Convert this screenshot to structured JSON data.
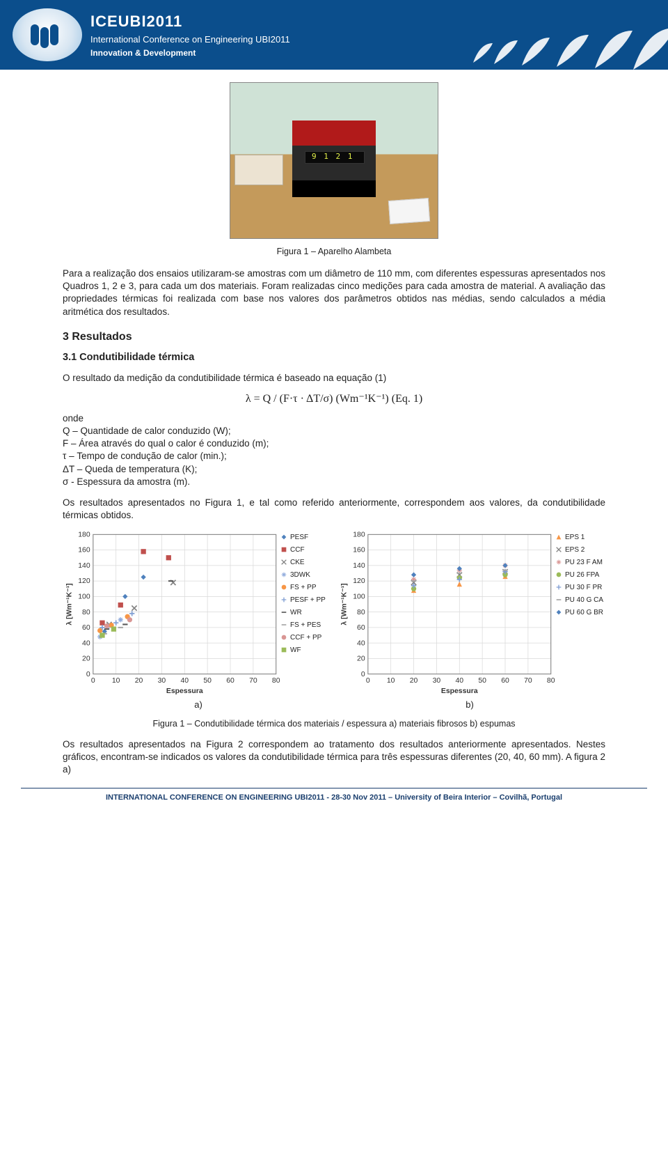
{
  "banner": {
    "title": "ICEUBI2011",
    "subtitle": "International Conference on Engineering UBI2011",
    "tagline": "Innovation & Development"
  },
  "fig1_photo_caption": "Figura 1 – Aparelho Alambeta",
  "para_intro": "Para a realização dos ensaios utilizaram-se amostras com um diâmetro de 110 mm, com diferentes espessuras apresentados nos Quadros 1, 2 e 3, para cada um dos materiais. Foram realizadas cinco medições para cada amostra de material. A avaliação das propriedades térmicas foi realizada com base nos valores dos parâmetros obtidos nas médias, sendo calculados a média aritmética dos resultados.",
  "sec_results": "3 Resultados",
  "sub_cond": "3.1 Condutibilidade térmica",
  "para_cond_intro": "O resultado da medição da condutibilidade térmica é baseado na equação (1)",
  "equation": "λ = Q / (F·τ · ΔT/σ)   (Wm⁻¹K⁻¹)    (Eq. 1)",
  "where_label": "onde",
  "where_lines": [
    "Q – Quantidade de calor conduzido (W);",
    "F – Área através do qual o calor é conduzido (m);",
    "τ – Tempo de condução de calor (min.);",
    "ΔT – Queda de temperatura (K);",
    "σ - Espessura da amostra (m)."
  ],
  "para_results_ref": "Os resultados apresentados no Figura 1, e tal como referido anteriormente, correspondem aos valores, da condutibilidade térmicas obtidos.",
  "chart_common": {
    "xlim": [
      0,
      80
    ],
    "ylim": [
      0,
      180
    ],
    "xticks": [
      0,
      10,
      20,
      30,
      40,
      50,
      60,
      70,
      80
    ],
    "yticks": [
      0,
      20,
      40,
      60,
      80,
      100,
      120,
      140,
      160,
      180
    ],
    "xlabel": "Espessura",
    "ylabel": "λ  [Wm⁻¹K⁻¹]",
    "grid_color": "#d9d9d9",
    "axis_color": "#808080",
    "label_fontsize": 10
  },
  "chart_a": {
    "type": "scatter",
    "series": [
      {
        "name": "PESF",
        "color": "#4f81bd",
        "marker": "diamond",
        "points": [
          [
            5,
            55
          ],
          [
            14,
            100
          ],
          [
            22,
            125
          ]
        ]
      },
      {
        "name": "CCF",
        "color": "#c0504d",
        "marker": "square",
        "points": [
          [
            4,
            66
          ],
          [
            12,
            89
          ],
          [
            22,
            158
          ],
          [
            33,
            150
          ]
        ]
      },
      {
        "name": "CKE",
        "color": "#808080",
        "marker": "x",
        "points": [
          [
            7,
            64
          ],
          [
            18,
            85
          ],
          [
            35,
            118
          ]
        ]
      },
      {
        "name": "3DWK",
        "color": "#8faadc",
        "marker": "star",
        "points": [
          [
            3,
            48
          ],
          [
            7,
            62
          ],
          [
            12,
            70
          ]
        ]
      },
      {
        "name": "FS + PP",
        "color": "#f79646",
        "marker": "circle",
        "points": [
          [
            3,
            56
          ],
          [
            8,
            63
          ],
          [
            15,
            74
          ]
        ]
      },
      {
        "name": "PESF + PP",
        "color": "#7f9ed3",
        "marker": "plus",
        "points": [
          [
            4,
            60
          ],
          [
            10,
            66
          ],
          [
            17,
            78
          ]
        ]
      },
      {
        "name": "WR",
        "color": "#595959",
        "marker": "dash",
        "points": [
          [
            6,
            58
          ],
          [
            14,
            64
          ],
          [
            34,
            120
          ]
        ]
      },
      {
        "name": "FS + PES",
        "color": "#a6a6a6",
        "marker": "dash",
        "points": [
          [
            5,
            52
          ],
          [
            12,
            60
          ]
        ]
      },
      {
        "name": "CCF + PP",
        "color": "#d99694",
        "marker": "circle",
        "points": [
          [
            6,
            62
          ],
          [
            16,
            70
          ]
        ]
      },
      {
        "name": "WF",
        "color": "#9bbb59",
        "marker": "square",
        "points": [
          [
            4,
            50
          ],
          [
            9,
            58
          ]
        ]
      }
    ]
  },
  "chart_b": {
    "type": "scatter",
    "series": [
      {
        "name": "EPS 1",
        "color": "#f79646",
        "marker": "triangle",
        "points": [
          [
            20,
            108
          ],
          [
            40,
            116
          ],
          [
            60,
            126
          ]
        ]
      },
      {
        "name": "EPS 2",
        "color": "#808080",
        "marker": "x",
        "points": [
          [
            20,
            118
          ],
          [
            40,
            128
          ],
          [
            60,
            132
          ]
        ]
      },
      {
        "name": "PU 23 F AM",
        "color": "#d99694",
        "marker": "star",
        "points": [
          [
            20,
            122
          ],
          [
            40,
            134
          ],
          [
            60,
            140
          ]
        ]
      },
      {
        "name": "PU 26 FPA",
        "color": "#9bbb59",
        "marker": "circle",
        "points": [
          [
            20,
            110
          ],
          [
            40,
            124
          ],
          [
            60,
            128
          ]
        ]
      },
      {
        "name": "PU 30 F PR",
        "color": "#7f9ed3",
        "marker": "plus",
        "points": [
          [
            20,
            114
          ],
          [
            40,
            122
          ],
          [
            60,
            132
          ]
        ]
      },
      {
        "name": "PU 40 G CA",
        "color": "#a6a6a6",
        "marker": "dash",
        "points": [
          [
            20,
            120
          ],
          [
            40,
            130
          ],
          [
            60,
            134
          ]
        ]
      },
      {
        "name": "PU 60 G BR",
        "color": "#4f81bd",
        "marker": "diamond",
        "points": [
          [
            20,
            128
          ],
          [
            40,
            136
          ],
          [
            60,
            140
          ]
        ]
      }
    ]
  },
  "ab_labels": {
    "a": "a)",
    "b": "b)"
  },
  "fig2_caption": "Figura 1 – Condutibilidade térmica dos materiais / espessura a) materiais fibrosos b) espumas",
  "para_final": "Os resultados apresentados na Figura 2 correspondem ao tratamento dos resultados anteriormente apresentados. Nestes gráficos, encontram-se indicados os valores da condutibilidade térmica para três espessuras diferentes (20, 40, 60 mm). A figura 2 a)",
  "footer": "INTERNATIONAL CONFERENCE ON ENGINEERING UBI2011 - 28-30 Nov 2011 – University of Beira Interior – Covilhã, Portugal",
  "photo_display": "9  1 2 1"
}
